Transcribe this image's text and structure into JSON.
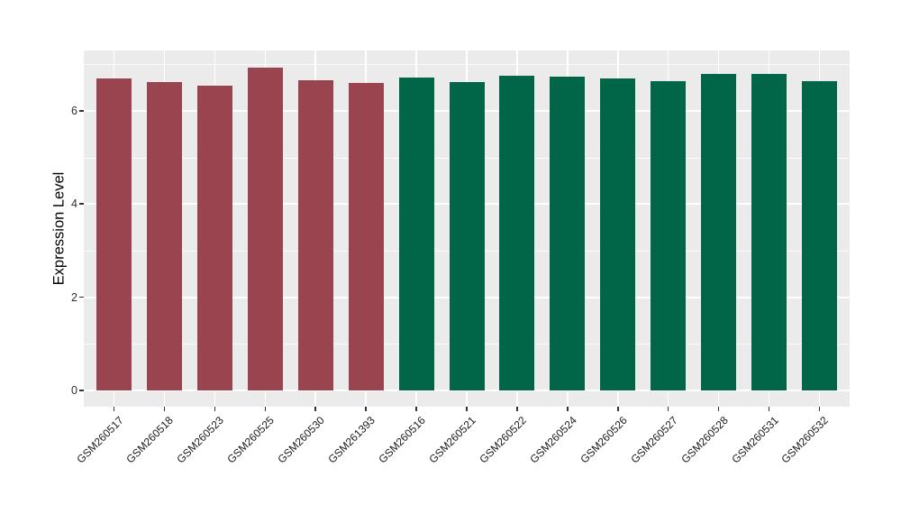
{
  "chart_data": {
    "type": "bar",
    "title": "",
    "xlabel": "",
    "ylabel": "Expression Level",
    "categories": [
      "GSM260517",
      "GSM260518",
      "GSM260523",
      "GSM260525",
      "GSM260530",
      "GSM261393",
      "GSM260516",
      "GSM260521",
      "GSM260522",
      "GSM260524",
      "GSM260526",
      "GSM260527",
      "GSM260528",
      "GSM260531",
      "GSM260532"
    ],
    "values": [
      6.69,
      6.62,
      6.54,
      6.92,
      6.65,
      6.59,
      6.71,
      6.62,
      6.75,
      6.74,
      6.7,
      6.64,
      6.79,
      6.79,
      6.64
    ],
    "bar_colors": [
      "#9A4450",
      "#9A4450",
      "#9A4450",
      "#9A4450",
      "#9A4450",
      "#9A4450",
      "#006647",
      "#006647",
      "#006647",
      "#006647",
      "#006647",
      "#006647",
      "#006647",
      "#006647",
      "#006647"
    ],
    "group_colors": {
      "red": "#9A4450",
      "green": "#006647"
    },
    "y_ticks": [
      0,
      2,
      4,
      6
    ],
    "y_minor_ticks": [
      1,
      3,
      5,
      7
    ],
    "ylim": [
      0,
      7.29
    ],
    "grid": true,
    "legend": "none",
    "panel_background": "#EBEBEB",
    "grid_color": "#FFFFFF",
    "axis_text_color": "#303030"
  }
}
